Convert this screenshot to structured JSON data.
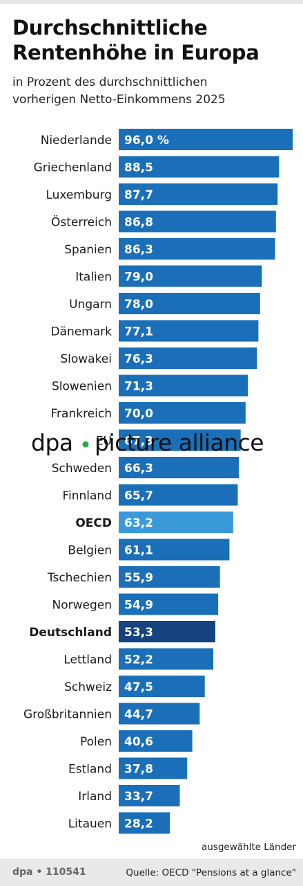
{
  "header": {
    "title_line1": "Durchschnittliche",
    "title_line2": "Rentenhöhe in Europa",
    "subtitle_line1": "in Prozent des durchschnittlichen",
    "subtitle_line2": "vorherigen Netto-Einkommens 2025"
  },
  "colors": {
    "bar_default": "#1a6fb8",
    "bar_oecd": "#3a9ad9",
    "bar_germany": "#15437f"
  },
  "chart_data": {
    "type": "bar",
    "orientation": "horizontal",
    "xlim": [
      0,
      96.0
    ],
    "grid": false,
    "categories": [
      "Niederlande",
      "Griechenland",
      "Luxemburg",
      "Österreich",
      "Spanien",
      "Italien",
      "Ungarn",
      "Dänemark",
      "Slowakei",
      "Slowenien",
      "Frankreich",
      "EU",
      "Schweden",
      "Finnland",
      "OECD",
      "Belgien",
      "Tschechien",
      "Norwegen",
      "Deutschland",
      "Lettland",
      "Schweiz",
      "Großbritannien",
      "Polen",
      "Estland",
      "Irland",
      "Litauen"
    ],
    "values": [
      96.0,
      88.5,
      87.7,
      86.8,
      86.3,
      79.0,
      78.0,
      77.1,
      76.3,
      71.3,
      70.0,
      67.3,
      66.3,
      65.7,
      63.2,
      61.1,
      55.9,
      54.9,
      53.3,
      52.2,
      47.5,
      44.7,
      40.6,
      37.8,
      33.7,
      28.2
    ],
    "value_labels": [
      "96,0 %",
      "88,5",
      "87,7",
      "86,8",
      "86,3",
      "79,0",
      "78,0",
      "77,1",
      "76,3",
      "71,3",
      "70,0",
      "67,3",
      "66,3",
      "65,7",
      "63,2",
      "61,1",
      "55,9",
      "54,9",
      "53,3",
      "52,2",
      "47,5",
      "44,7",
      "40,6",
      "37,8",
      "33,7",
      "28,2"
    ],
    "highlight": {
      "OECD": "oecd",
      "Deutschland": "germany"
    },
    "bold_labels": [
      "OECD",
      "Deutschland"
    ]
  },
  "note": "ausgewählte Länder",
  "footer": {
    "id": "dpa • 110541",
    "source": "Quelle: OECD \"Pensions at a glance\""
  },
  "watermark": {
    "left": "dpa",
    "right": "picture alliance"
  }
}
